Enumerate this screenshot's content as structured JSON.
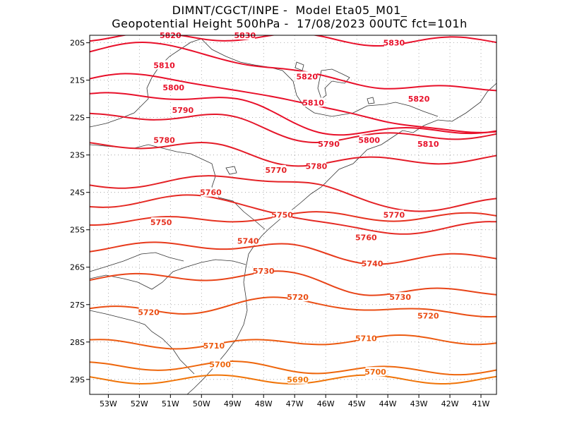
{
  "title": {
    "line1": "DIMNT/CGCT/INPE -  Model Eta05_M01_",
    "line2": "Geopotential Height 500hPa -  17/08/2023 00UTC fct=101h"
  },
  "map": {
    "lon_ticks": [
      "53W",
      "52W",
      "51W",
      "50W",
      "49W",
      "48W",
      "47W",
      "46W",
      "45W",
      "44W",
      "43W",
      "42W",
      "41W"
    ],
    "lat_ticks": [
      "20S",
      "21S",
      "22S",
      "23S",
      "24S",
      "25S",
      "26S",
      "27S",
      "28S",
      "29S"
    ],
    "lon_range": [
      -53.6,
      -40.5
    ],
    "lat_range": [
      -29.4,
      -19.8
    ],
    "grid": "dotted"
  },
  "contours": [
    {
      "value": "5830",
      "color": "#e8102a",
      "labels": [
        {
          "lon": -48.6,
          "lat": -19.8
        },
        {
          "lon": -43.8,
          "lat": -20.0
        }
      ]
    },
    {
      "value": "5820",
      "color": "#e8102a",
      "labels": [
        {
          "lon": -51.0,
          "lat": -19.8
        },
        {
          "lon": -46.6,
          "lat": -20.9
        },
        {
          "lon": -43.0,
          "lat": -21.5
        }
      ]
    },
    {
      "value": "5810",
      "color": "#e8102a",
      "labels": [
        {
          "lon": -51.2,
          "lat": -20.6
        },
        {
          "lon": -46.4,
          "lat": -21.6
        },
        {
          "lon": -42.7,
          "lat": -22.7
        }
      ]
    },
    {
      "value": "5800",
      "color": "#e8102a",
      "labels": [
        {
          "lon": -50.9,
          "lat": -21.2
        },
        {
          "lon": -44.6,
          "lat": -22.6
        }
      ]
    },
    {
      "value": "5790",
      "color": "#e4162a",
      "labels": [
        {
          "lon": -50.6,
          "lat": -21.8
        },
        {
          "lon": -45.9,
          "lat": -22.7
        }
      ]
    },
    {
      "value": "5780",
      "color": "#e41c28",
      "labels": [
        {
          "lon": -51.2,
          "lat": -22.6
        },
        {
          "lon": -46.3,
          "lat": -23.3
        }
      ]
    },
    {
      "value": "5770",
      "color": "#e42226",
      "labels": [
        {
          "lon": -47.6,
          "lat": -23.4
        },
        {
          "lon": -43.8,
          "lat": -24.6
        }
      ]
    },
    {
      "value": "5760",
      "color": "#e52a24",
      "labels": [
        {
          "lon": -49.7,
          "lat": -24.0
        },
        {
          "lon": -44.7,
          "lat": -25.2
        }
      ]
    },
    {
      "value": "5750",
      "color": "#e63220",
      "labels": [
        {
          "lon": -51.3,
          "lat": -24.8
        },
        {
          "lon": -47.4,
          "lat": -24.6
        }
      ]
    },
    {
      "value": "5740",
      "color": "#e73a1c",
      "labels": [
        {
          "lon": -48.5,
          "lat": -25.3
        },
        {
          "lon": -44.5,
          "lat": -25.9
        }
      ]
    },
    {
      "value": "5730",
      "color": "#e84418",
      "labels": [
        {
          "lon": -48.0,
          "lat": -26.1
        },
        {
          "lon": -43.6,
          "lat": -26.8
        }
      ]
    },
    {
      "value": "5720",
      "color": "#ea4e14",
      "labels": [
        {
          "lon": -51.7,
          "lat": -27.2
        },
        {
          "lon": -46.9,
          "lat": -26.8
        },
        {
          "lon": -42.7,
          "lat": -27.3
        }
      ]
    },
    {
      "value": "5710",
      "color": "#ec5a10",
      "labels": [
        {
          "lon": -49.6,
          "lat": -28.1
        },
        {
          "lon": -44.7,
          "lat": -27.9
        }
      ]
    },
    {
      "value": "5700",
      "color": "#ee660c",
      "labels": [
        {
          "lon": -49.4,
          "lat": -28.6
        },
        {
          "lon": -44.4,
          "lat": -28.8
        }
      ]
    },
    {
      "value": "5690",
      "color": "#f07408",
      "labels": [
        {
          "lon": -46.9,
          "lat": -29.0
        }
      ]
    }
  ]
}
